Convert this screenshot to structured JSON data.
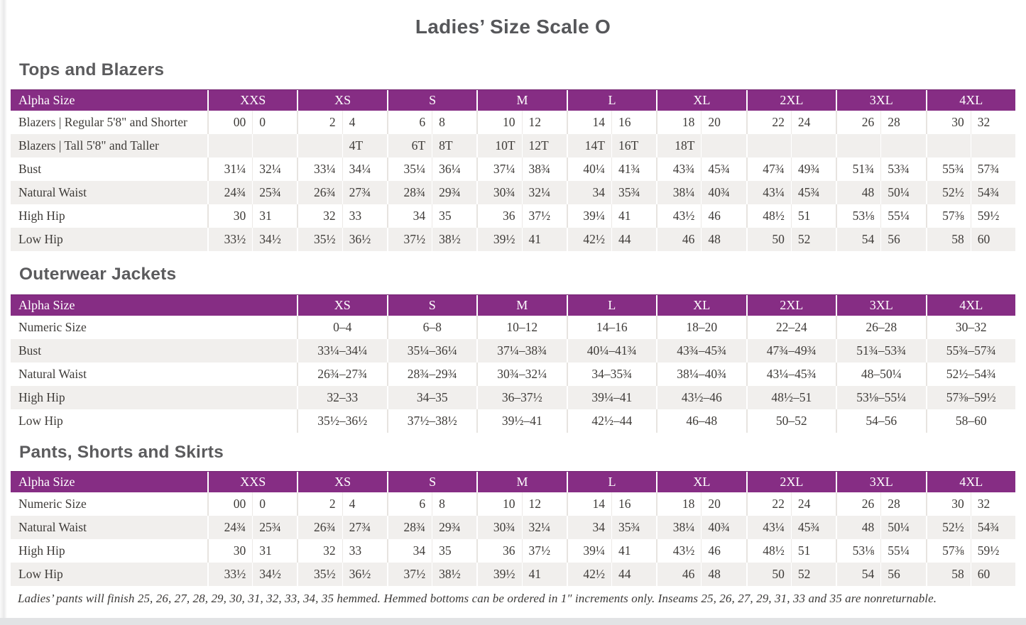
{
  "page": {
    "title": "Ladies’ Size Scale O",
    "footnote": "Ladies’ pants will finish 25, 26, 27, 28, 29, 30, 31, 32, 33, 34, 35 hemmed. Hemmed bottoms can be ordered in 1″ increments only. Inseams 25, 26, 27, 29, 31, 33 and 35 are nonreturnable."
  },
  "colors": {
    "header_purple": "#862d84",
    "stripe_gray": "#f1efed",
    "heading_gray": "#5b5b5d",
    "text_dark": "#3e3b38"
  },
  "tables": [
    {
      "section_title": "Tops and Blazers",
      "header_label": "Alpha Size",
      "paired": true,
      "columns": [
        "XXS",
        "XS",
        "S",
        "M",
        "L",
        "XL",
        "2XL",
        "3XL",
        "4XL"
      ],
      "rows": [
        {
          "label": "Blazers  |  Regular 5'8\" and Shorter",
          "values": [
            "00",
            "0",
            "2",
            "4",
            "6",
            "8",
            "10",
            "12",
            "14",
            "16",
            "18",
            "20",
            "22",
            "24",
            "26",
            "28",
            "30",
            "32"
          ]
        },
        {
          "label": "Blazers  |  Tall 5'8\" and Taller",
          "values": [
            "",
            "",
            "",
            "4T",
            "6T",
            "8T",
            "10T",
            "12T",
            "14T",
            "16T",
            "18T",
            "",
            "",
            "",
            "",
            "",
            "",
            ""
          ]
        },
        {
          "label": "Bust",
          "values": [
            "31¼",
            "32¼",
            "33¼",
            "34¼",
            "35¼",
            "36¼",
            "37¼",
            "38¾",
            "40¼",
            "41¾",
            "43¾",
            "45¾",
            "47¾",
            "49¾",
            "51¾",
            "53¾",
            "55¾",
            "57¾"
          ]
        },
        {
          "label": "Natural Waist",
          "values": [
            "24¾",
            "25¾",
            "26¾",
            "27¾",
            "28¾",
            "29¾",
            "30¾",
            "32¼",
            "34",
            "35¾",
            "38¼",
            "40¾",
            "43¼",
            "45¾",
            "48",
            "50¼",
            "52½",
            "54¾"
          ]
        },
        {
          "label": "High Hip",
          "values": [
            "30",
            "31",
            "32",
            "33",
            "34",
            "35",
            "36",
            "37½",
            "39¼",
            "41",
            "43½",
            "46",
            "48½",
            "51",
            "53⅛",
            "55¼",
            "57⅜",
            "59½"
          ]
        },
        {
          "label": "Low Hip",
          "values": [
            "33½",
            "34½",
            "35½",
            "36½",
            "37½",
            "38½",
            "39½",
            "41",
            "42½",
            "44",
            "46",
            "48",
            "50",
            "52",
            "54",
            "56",
            "58",
            "60"
          ]
        }
      ]
    },
    {
      "section_title": "Outerwear Jackets",
      "header_label": "Alpha Size",
      "paired": false,
      "columns": [
        "XS",
        "S",
        "M",
        "L",
        "XL",
        "2XL",
        "3XL",
        "4XL"
      ],
      "rows": [
        {
          "label": "Numeric Size",
          "values": [
            "0–4",
            "6–8",
            "10–12",
            "14–16",
            "18–20",
            "22–24",
            "26–28",
            "30–32"
          ]
        },
        {
          "label": "Bust",
          "values": [
            "33¼–34¼",
            "35¼–36¼",
            "37¼–38¾",
            "40¼–41¾",
            "43¾–45¾",
            "47¾–49¾",
            "51¾–53¾",
            "55¾–57¾"
          ]
        },
        {
          "label": "Natural Waist",
          "values": [
            "26¾–27¾",
            "28¾–29¾",
            "30¾–32¼",
            "34–35¾",
            "38¼–40¾",
            "43¼–45¾",
            "48–50¼",
            "52½–54¾"
          ]
        },
        {
          "label": "High Hip",
          "values": [
            "32–33",
            "34–35",
            "36–37½",
            "39¼–41",
            "43½–46",
            "48½–51",
            "53⅛–55¼",
            "57⅜–59½"
          ]
        },
        {
          "label": "Low Hip",
          "values": [
            "35½–36½",
            "37½–38½",
            "39½–41",
            "42½–44",
            "46–48",
            "50–52",
            "54–56",
            "58–60"
          ]
        }
      ]
    },
    {
      "section_title": "Pants, Shorts and Skirts",
      "header_label": "Alpha Size",
      "paired": true,
      "columns": [
        "XXS",
        "XS",
        "S",
        "M",
        "L",
        "XL",
        "2XL",
        "3XL",
        "4XL"
      ],
      "rows": [
        {
          "label": "Numeric Size",
          "values": [
            "00",
            "0",
            "2",
            "4",
            "6",
            "8",
            "10",
            "12",
            "14",
            "16",
            "18",
            "20",
            "22",
            "24",
            "26",
            "28",
            "30",
            "32"
          ]
        },
        {
          "label": "Natural Waist",
          "values": [
            "24¾",
            "25¾",
            "26¾",
            "27¾",
            "28¾",
            "29¾",
            "30¾",
            "32¼",
            "34",
            "35¾",
            "38¼",
            "40¾",
            "43¼",
            "45¾",
            "48",
            "50¼",
            "52½",
            "54¾"
          ]
        },
        {
          "label": "High Hip",
          "values": [
            "30",
            "31",
            "32",
            "33",
            "34",
            "35",
            "36",
            "37½",
            "39¼",
            "41",
            "43½",
            "46",
            "48½",
            "51",
            "53⅛",
            "55¼",
            "57⅜",
            "59½"
          ]
        },
        {
          "label": "Low Hip",
          "values": [
            "33½",
            "34½",
            "35½",
            "36½",
            "37½",
            "38½",
            "39½",
            "41",
            "42½",
            "44",
            "46",
            "48",
            "50",
            "52",
            "54",
            "56",
            "58",
            "60"
          ]
        }
      ]
    }
  ]
}
